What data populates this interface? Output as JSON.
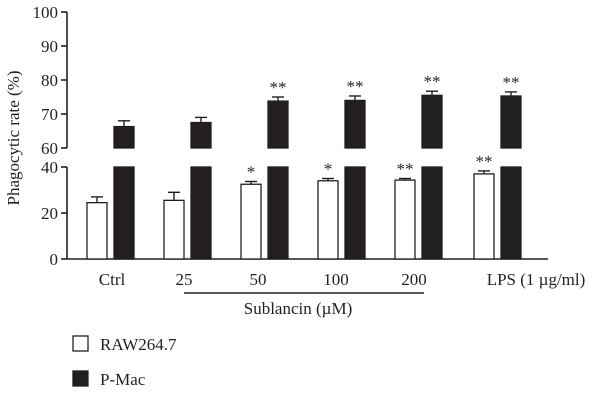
{
  "chart_data": {
    "type": "bar",
    "ylabel": "Phagocytic rate (%)",
    "y_axis_break": [
      40,
      60
    ],
    "ylim": [
      0,
      100
    ],
    "ticks_lower": [
      0,
      20,
      40
    ],
    "ticks_upper": [
      60,
      70,
      80,
      90,
      100
    ],
    "categories": [
      {
        "label": "Ctrl",
        "group": ""
      },
      {
        "label": "25",
        "group": "Sublancin"
      },
      {
        "label": "50",
        "group": "Sublancin"
      },
      {
        "label": "100",
        "group": "Sublancin"
      },
      {
        "label": "200",
        "group": "Sublancin"
      },
      {
        "label": "LPS (1 µg/ml)",
        "group": ""
      }
    ],
    "group_label": "Sublancin (µM)",
    "series": [
      {
        "name": "RAW264.7",
        "color": "#ffffff",
        "values": [
          24.5,
          25.5,
          32.5,
          34.0,
          34.3,
          37.0
        ],
        "errors": [
          2.5,
          3.5,
          1.2,
          1.0,
          0.7,
          1.3
        ],
        "significance": [
          "",
          "",
          "*",
          "*",
          "**",
          "**"
        ]
      },
      {
        "name": "P-Mac",
        "color": "#231f20",
        "values": [
          66.3,
          67.5,
          73.8,
          74.0,
          75.5,
          75.3
        ],
        "errors": [
          1.7,
          1.5,
          1.2,
          1.3,
          1.2,
          1.2
        ],
        "significance": [
          "",
          "",
          "**",
          "**",
          "**",
          "**"
        ]
      }
    ]
  }
}
